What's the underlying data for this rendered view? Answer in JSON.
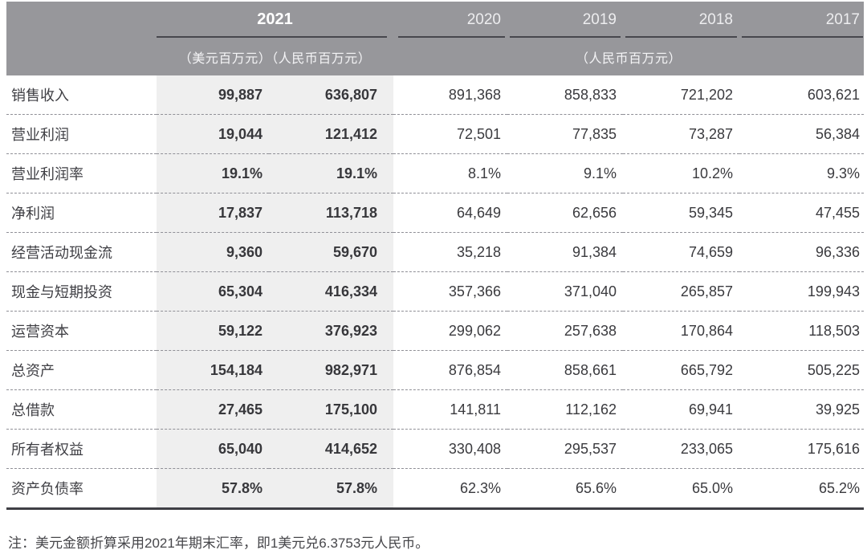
{
  "header": {
    "col_2021": "2021",
    "years": [
      "2020",
      "2019",
      "2018",
      "2017"
    ],
    "unit_usd": "（美元百万元）",
    "unit_rmb": "（人民币百万元）",
    "unit_rmb_group": "（人民币百万元）"
  },
  "rows": [
    {
      "label": "销售收入",
      "usd": "99,887",
      "rmb": "636,807",
      "y2020": "891,368",
      "y2019": "858,833",
      "y2018": "721,202",
      "y2017": "603,621"
    },
    {
      "label": "营业利润",
      "usd": "19,044",
      "rmb": "121,412",
      "y2020": "72,501",
      "y2019": "77,835",
      "y2018": "73,287",
      "y2017": "56,384"
    },
    {
      "label": "营业利润率",
      "usd": "19.1%",
      "rmb": "19.1%",
      "y2020": "8.1%",
      "y2019": "9.1%",
      "y2018": "10.2%",
      "y2017": "9.3%"
    },
    {
      "label": "净利润",
      "usd": "17,837",
      "rmb": "113,718",
      "y2020": "64,649",
      "y2019": "62,656",
      "y2018": "59,345",
      "y2017": "47,455"
    },
    {
      "label": "经营活动现金流",
      "usd": "9,360",
      "rmb": "59,670",
      "y2020": "35,218",
      "y2019": "91,384",
      "y2018": "74,659",
      "y2017": "96,336"
    },
    {
      "label": "现金与短期投资",
      "usd": "65,304",
      "rmb": "416,334",
      "y2020": "357,366",
      "y2019": "371,040",
      "y2018": "265,857",
      "y2017": "199,943"
    },
    {
      "label": "运营资本",
      "usd": "59,122",
      "rmb": "376,923",
      "y2020": "299,062",
      "y2019": "257,638",
      "y2018": "170,864",
      "y2017": "118,503"
    },
    {
      "label": "总资产",
      "usd": "154,184",
      "rmb": "982,971",
      "y2020": "876,854",
      "y2019": "858,661",
      "y2018": "665,792",
      "y2017": "505,225"
    },
    {
      "label": "总借款",
      "usd": "27,465",
      "rmb": "175,100",
      "y2020": "141,811",
      "y2019": "112,162",
      "y2018": "69,941",
      "y2017": "39,925"
    },
    {
      "label": "所有者权益",
      "usd": "65,040",
      "rmb": "414,652",
      "y2020": "330,408",
      "y2019": "295,537",
      "y2018": "233,065",
      "y2017": "175,616"
    },
    {
      "label": "资产负债率",
      "usd": "57.8%",
      "rmb": "57.8%",
      "y2020": "62.3%",
      "y2019": "65.6%",
      "y2018": "65.0%",
      "y2017": "65.2%"
    }
  ],
  "note": "注：美元金额折算采用2021年期末汇率，即1美元兑6.3753元人民币。",
  "colors": {
    "header_bg": "#97979b",
    "highlight_bg": "#efefef",
    "rule_dark": "#47474d",
    "table_bottom_rule": "#3f3f45",
    "text_dark": "#3a3a3e"
  }
}
